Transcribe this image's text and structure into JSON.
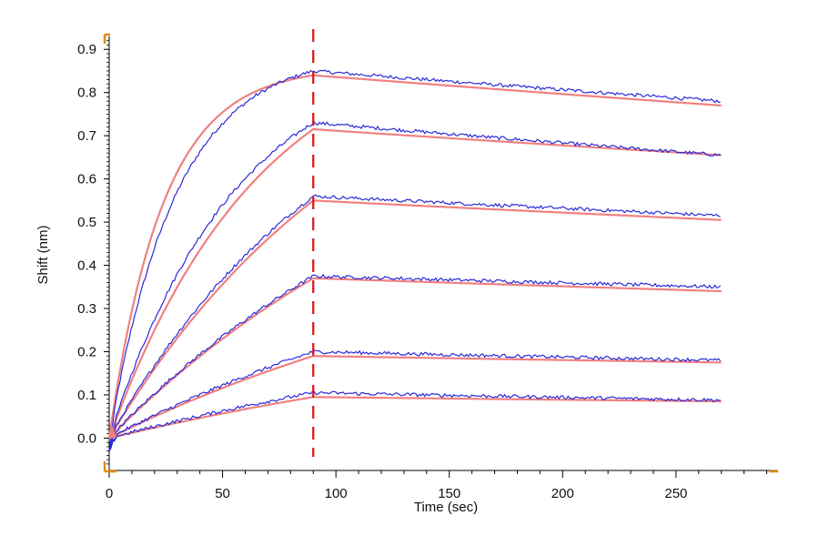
{
  "chart_data": {
    "type": "line",
    "title": "",
    "xlabel": "Time (sec)",
    "ylabel": "Shift (nm)",
    "xlim": [
      0,
      295
    ],
    "ylim": [
      -0.075,
      0.93
    ],
    "x_ticks": [
      "0",
      "50",
      "100",
      "150",
      "200",
      "250"
    ],
    "y_ticks": [
      "0.0",
      "0.1",
      "0.2",
      "0.3",
      "0.4",
      "0.5",
      "0.6",
      "0.7",
      "0.8",
      "0.9"
    ],
    "grid": false,
    "legend": "none",
    "association_end_marker": 90,
    "x_end": 270,
    "colors": {
      "measured": "#2a2ad8",
      "fit": "#f08080",
      "marker": "#dd1111",
      "axis_marker": "#e08a00",
      "axis": "#000000"
    },
    "series": [
      {
        "fit": {
          "peak": 0.84,
          "end": 0.77,
          "k_assoc": 0.042
        },
        "measured": {
          "peak": 0.85,
          "end": 0.78,
          "k_assoc": 0.034
        }
      },
      {
        "fit": {
          "peak": 0.715,
          "end": 0.655,
          "k_assoc": 0.015
        },
        "measured": {
          "peak": 0.73,
          "end": 0.655,
          "k_assoc": 0.018
        }
      },
      {
        "fit": {
          "peak": 0.55,
          "end": 0.505,
          "k_assoc": 0.0085
        },
        "measured": {
          "peak": 0.56,
          "end": 0.515,
          "k_assoc": 0.0095
        }
      },
      {
        "fit": {
          "peak": 0.37,
          "end": 0.34,
          "k_assoc": 0.006
        },
        "measured": {
          "peak": 0.375,
          "end": 0.35,
          "k_assoc": 0.0065
        }
      },
      {
        "fit": {
          "peak": 0.19,
          "end": 0.175,
          "k_assoc": 0.005
        },
        "measured": {
          "peak": 0.2,
          "end": 0.18,
          "k_assoc": 0.005
        }
      },
      {
        "fit": {
          "peak": 0.095,
          "end": 0.085,
          "k_assoc": 0.004
        },
        "measured": {
          "peak": 0.105,
          "end": 0.088,
          "k_assoc": 0.004
        }
      }
    ]
  }
}
